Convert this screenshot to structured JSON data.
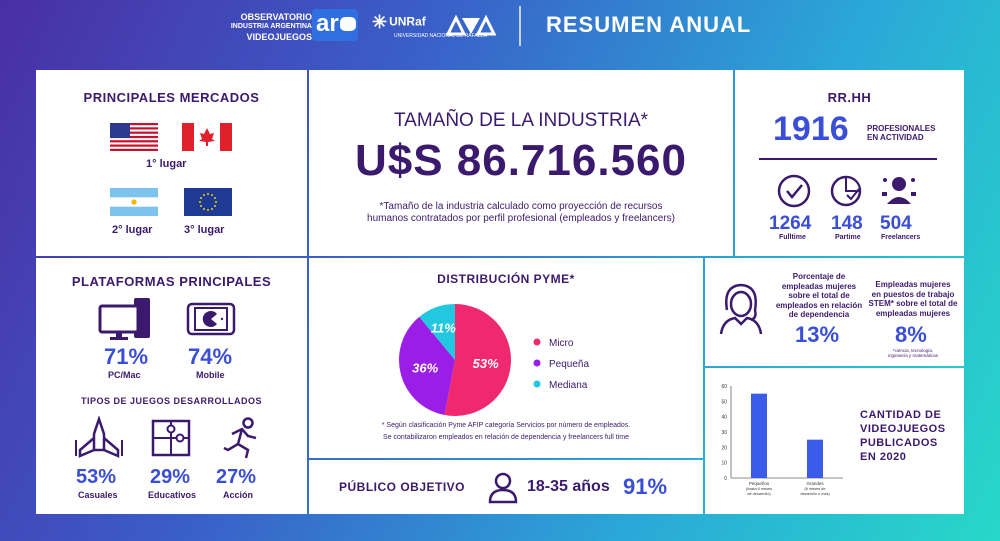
{
  "header": {
    "logo_line1": "OBSERVATORIO",
    "logo_line2": "INDUSTRIA ARGENTINA",
    "logo_line3": "VIDEOJUEGOS",
    "logo_ar": "ar",
    "unraf": "UNRaf",
    "unraf_sub": "UNIVERSIDAD NACIONAL DE RAFAELA",
    "title": "RESUMEN ANUAL"
  },
  "mercados": {
    "title": "PRINCIPALES MERCADOS",
    "first_label": "1° lugar",
    "second_label": "2° lugar",
    "third_label": "3° lugar",
    "flags": [
      "usa-flag",
      "canada-flag",
      "argentina-flag",
      "eu-flag"
    ]
  },
  "industria": {
    "title": "TAMAÑO DE LA INDUSTRIA*",
    "value": "U$S 86.716.560",
    "note_line1": "*Tamaño de la industria calculado como proyección de recursos",
    "note_line2": "humanos contratados por perfil profesional (empleados y freelancers)"
  },
  "rrhh": {
    "title": "RR.HH",
    "total": "1916",
    "total_label_1": "PROFESIONALES",
    "total_label_2": "EN ACTIVIDAD",
    "fulltime_value": "1264",
    "fulltime_label": "Fulltime",
    "parttime_value": "148",
    "parttime_label": "Partime",
    "freelancers_value": "504",
    "freelancers_label": "Freelancers"
  },
  "plataformas": {
    "title": "PLATAFORMAS PRINCIPALES",
    "pc_value": "71%",
    "pc_label": "PC/Mac",
    "mobile_value": "74%",
    "mobile_label": "Mobile",
    "tipos_title": "TIPOS DE JUEGOS DESARROLLADOS",
    "casuales_value": "53%",
    "casuales_label": "Casuales",
    "educativos_value": "29%",
    "educativos_label": "Educativos",
    "accion_value": "27%",
    "accion_label": "Acción"
  },
  "pyme": {
    "title": "DISTRIBUCIÓN PYME*",
    "note_line1": "* Según clasificación Pyme AFIP categoría Servicios por número de empleados.",
    "note_line2": "Se contabilizaron empleados en relación de dependencia y freelancers full time"
  },
  "publico": {
    "title": "PÚBLICO OBJETIVO",
    "range": "18-35 años",
    "value": "91%"
  },
  "mujeres": {
    "left_l1": "Porcentaje de",
    "left_l2": "empleadas mujeres",
    "left_l3": "sobre el total de",
    "left_l4": "empleados en relación",
    "left_l5": "de dependencia",
    "left_value": "13%",
    "right_l1": "Empleadas mujeres",
    "right_l2": "en puestos de trabajo",
    "right_l3": "STEM* sobre el total de",
    "right_l4": "empleadas mujeres",
    "right_value": "8%",
    "right_note_l1": "*ciencia, tecnología,",
    "right_note_l2": "ingeniería y matemáticas"
  },
  "cantidad": {
    "title_l1": "CANTIDAD DE",
    "title_l2": "VIDEOJUEGOS",
    "title_l3": "PUBLICADOS",
    "title_l4": "EN 2020"
  },
  "chart_data": [
    {
      "type": "pie",
      "title": "DISTRIBUCIÓN PYME*",
      "categories": [
        "Micro",
        "Pequeña",
        "Mediana"
      ],
      "values": [
        53,
        36,
        11
      ],
      "labels": [
        "53%",
        "36%",
        "11%"
      ],
      "colors": [
        "#f0286e",
        "#9a1ee6",
        "#22c7e0"
      ],
      "legend_placement": "right"
    },
    {
      "type": "bar",
      "categories": [
        "Pequeños\n(hasta 6 meses\nde desarrollo)",
        "Grandes\n(6 meses de\ndesarrollo o más)"
      ],
      "values": [
        55,
        25
      ],
      "ylim": [
        0,
        60
      ],
      "yticks": [
        0,
        10,
        20,
        30,
        40,
        50,
        60
      ],
      "color": "#3a5ce8",
      "grid": false
    }
  ]
}
